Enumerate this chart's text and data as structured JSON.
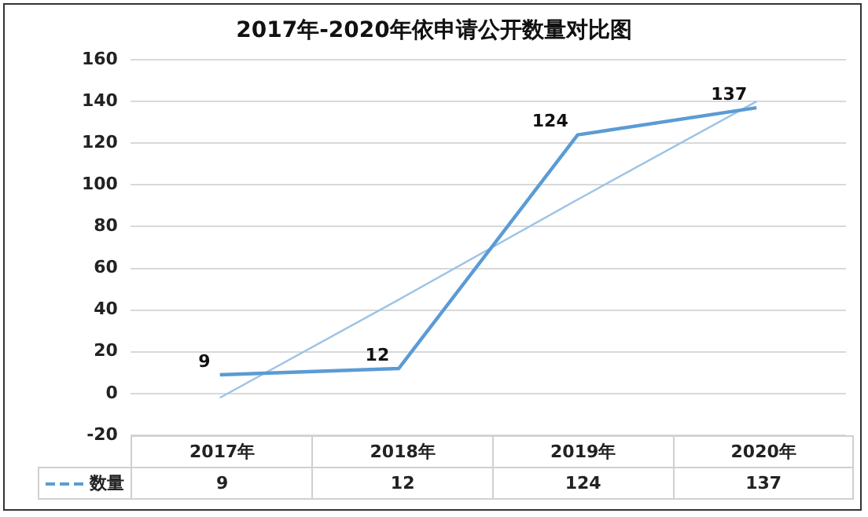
{
  "chart_data": {
    "type": "line",
    "title": "2017年-2020年依申请公开数量对比图",
    "categories": [
      "2017年",
      "2018年",
      "2019年",
      "2020年"
    ],
    "series": [
      {
        "name": "数量",
        "color": "#5b9bd5",
        "values": [
          9,
          12,
          124,
          137
        ],
        "value_labels": [
          "9",
          "12",
          "124",
          "137"
        ]
      },
      {
        "type": "line",
        "color": "#9dc3e6",
        "values": [
          -2,
          45,
          93,
          140
        ]
      }
    ],
    "ylim": [
      -20,
      160
    ],
    "yticks": [
      -20,
      0,
      20,
      40,
      60,
      80,
      100,
      120,
      140,
      160
    ],
    "grid": "y",
    "legend": "bottom",
    "marker": "none"
  }
}
